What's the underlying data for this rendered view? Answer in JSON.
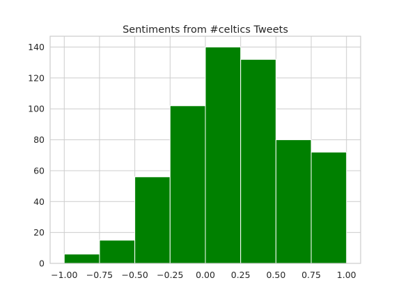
{
  "chart_data": {
    "type": "bar",
    "title": "Sentiments from #celtics Tweets",
    "xlabel": "",
    "ylabel": "",
    "bins": [
      {
        "start": -1.0,
        "end": -0.75,
        "count": 6
      },
      {
        "start": -0.75,
        "end": -0.5,
        "count": 15
      },
      {
        "start": -0.5,
        "end": -0.25,
        "count": 56
      },
      {
        "start": -0.25,
        "end": 0.0,
        "count": 102
      },
      {
        "start": 0.0,
        "end": 0.25,
        "count": 140
      },
      {
        "start": 0.25,
        "end": 0.5,
        "count": 132
      },
      {
        "start": 0.5,
        "end": 0.75,
        "count": 80
      },
      {
        "start": 0.75,
        "end": 1.0,
        "count": 72
      }
    ],
    "xlim": [
      -1.1,
      1.1
    ],
    "ylim": [
      0,
      147
    ],
    "xticks": [
      -1.0,
      -0.75,
      -0.5,
      -0.25,
      0.0,
      0.25,
      0.5,
      0.75,
      1.0
    ],
    "xtick_labels": [
      "−1.00",
      "−0.75",
      "−0.50",
      "−0.25",
      "0.00",
      "0.25",
      "0.50",
      "0.75",
      "1.00"
    ],
    "yticks": [
      0,
      20,
      40,
      60,
      80,
      100,
      120,
      140
    ],
    "ytick_labels": [
      "0",
      "20",
      "40",
      "60",
      "80",
      "100",
      "120",
      "140"
    ],
    "grid": true,
    "colors": {
      "bar": "#008000",
      "bar_edge": "#ffffff",
      "grid": "#cccccc",
      "axes_edge": "#cccccc",
      "text": "#262626"
    }
  }
}
